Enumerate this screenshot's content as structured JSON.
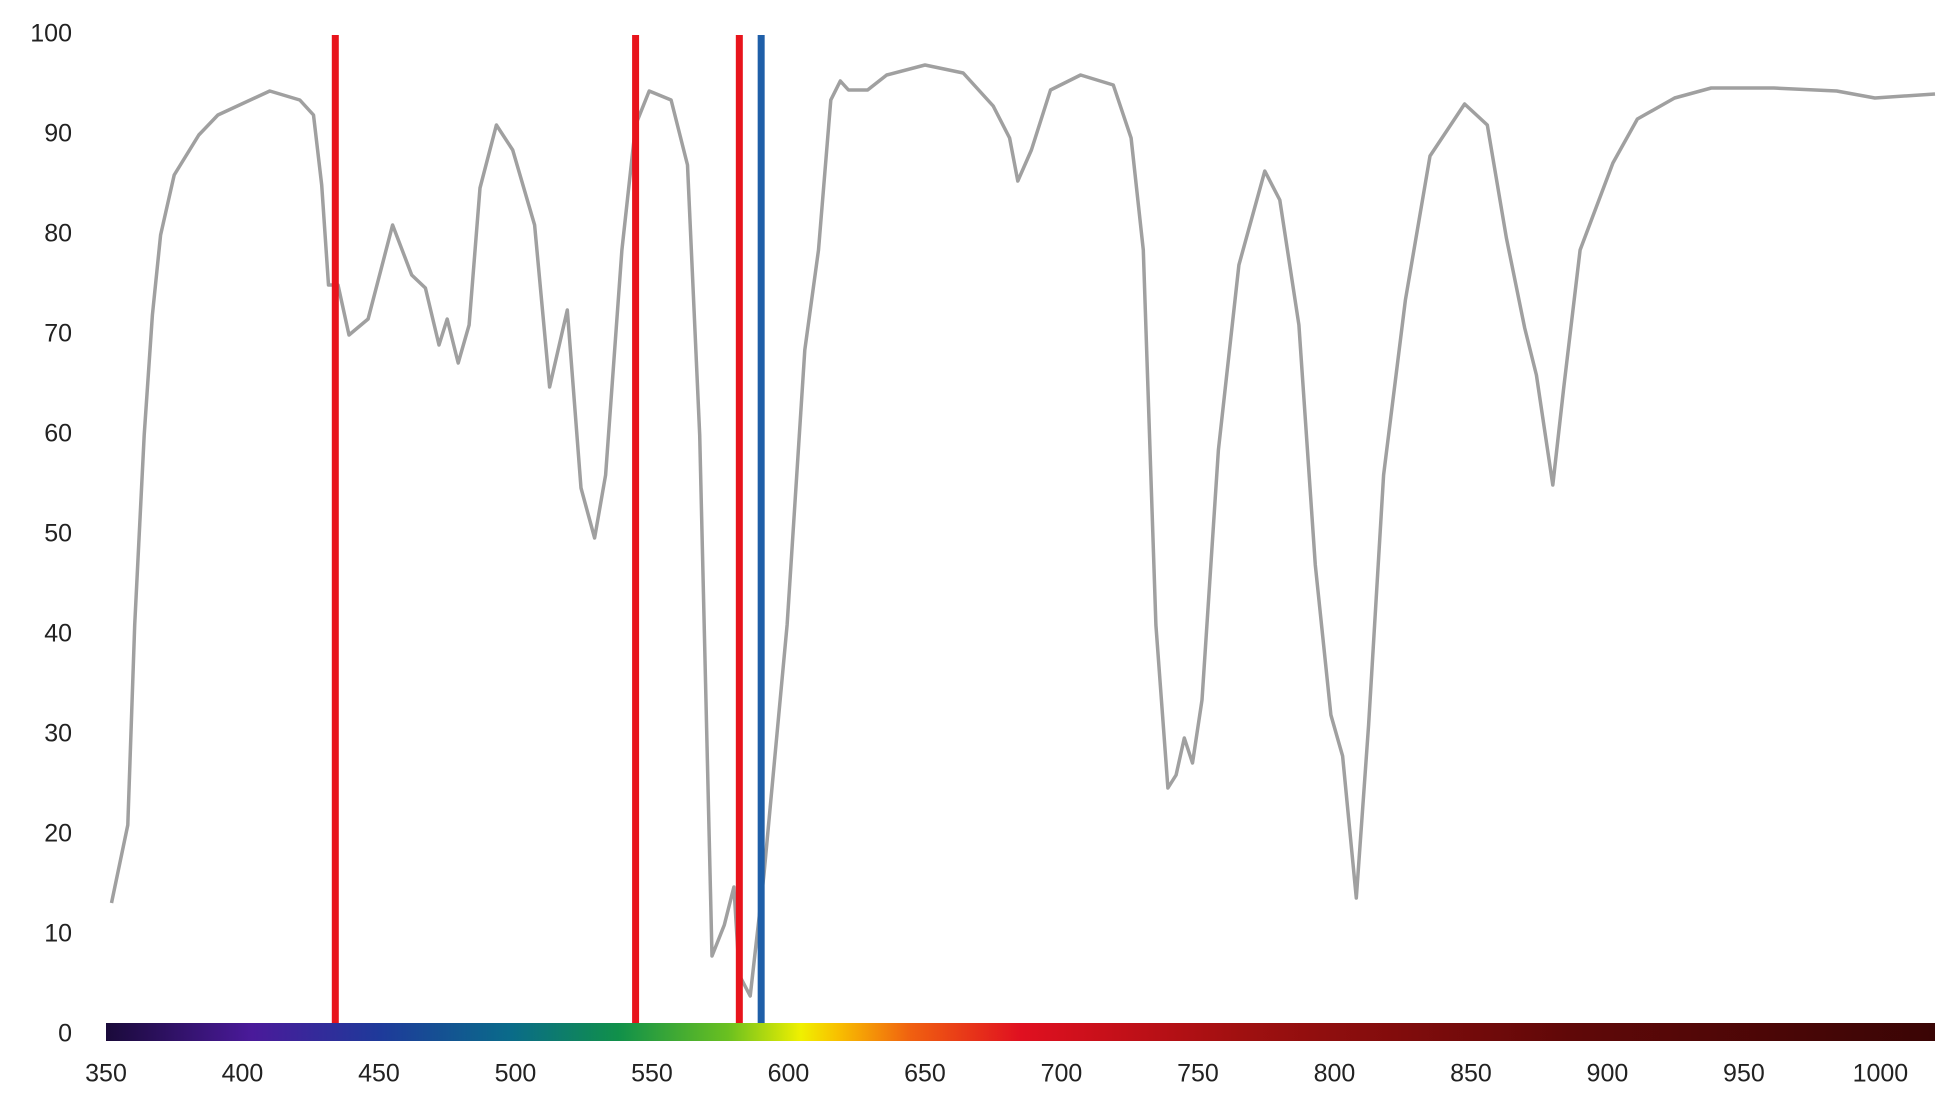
{
  "chart_data": {
    "type": "line",
    "xlim": [
      350,
      1020
    ],
    "ylim": [
      0,
      100
    ],
    "xticks": [
      350,
      400,
      450,
      500,
      550,
      600,
      650,
      700,
      750,
      800,
      850,
      900,
      950,
      1000
    ],
    "yticks": [
      0,
      10,
      20,
      30,
      40,
      50,
      60,
      70,
      80,
      90,
      100
    ],
    "xgrid": [
      350,
      360,
      370,
      380,
      390,
      400,
      410,
      420,
      430,
      440,
      450,
      460,
      470,
      480,
      490,
      500,
      510,
      520,
      530,
      540,
      550,
      560,
      570,
      580,
      590,
      600,
      610,
      620,
      630,
      640,
      650,
      660,
      670,
      680,
      690,
      700,
      710,
      720,
      730,
      740,
      750,
      760,
      770,
      780,
      790,
      800,
      810,
      820,
      830,
      840,
      850,
      860,
      870,
      880,
      890,
      900,
      910,
      920,
      930,
      940,
      950,
      960,
      970,
      980,
      990,
      1000,
      1010,
      1020
    ],
    "grid": true,
    "vlines": [
      {
        "x": 434,
        "color": "#e8141c"
      },
      {
        "x": 544,
        "color": "#e8141c"
      },
      {
        "x": 582,
        "color": "#e8141c"
      },
      {
        "x": 590,
        "color": "#1f5fa8"
      }
    ],
    "x": [
      352,
      358,
      360.5,
      364,
      367,
      370,
      375,
      384,
      391,
      410,
      421,
      426,
      429,
      431.5,
      435,
      439,
      446,
      455,
      462,
      467,
      472,
      475,
      479,
      483,
      487,
      493,
      499,
      507,
      512.5,
      519,
      524,
      529,
      533,
      539,
      544,
      549,
      557,
      563,
      567.5,
      572,
      576.5,
      580,
      582,
      586,
      591,
      599.5,
      606,
      611,
      615.5,
      619,
      622,
      629,
      636,
      650,
      664,
      675,
      681,
      684,
      689,
      696,
      707,
      719,
      725.5,
      730,
      734.6,
      739,
      742,
      745,
      748,
      751.5,
      757.5,
      765,
      774.5,
      780,
      787,
      793,
      798.7,
      803,
      808,
      812.5,
      818,
      826,
      835,
      847.7,
      856,
      863,
      869.7,
      874,
      880,
      884,
      890,
      902,
      911,
      924.6,
      938,
      961,
      984,
      998,
      1020
    ],
    "series": [
      {
        "color": "#a0a0a0",
        "values": [
          13.2,
          21,
          41,
          60,
          72,
          80,
          86,
          90,
          92,
          94.4,
          93.5,
          92,
          85,
          75,
          75,
          70,
          71.6,
          81,
          76,
          74.7,
          69,
          71.6,
          67.2,
          71,
          84.7,
          91,
          88.5,
          81,
          64.8,
          72.5,
          54.7,
          49.7,
          56,
          78.5,
          91,
          94.4,
          93.5,
          87,
          60,
          7.9,
          11,
          14.8,
          6,
          3.9,
          16,
          41,
          68.5,
          78.5,
          93.5,
          95.4,
          94.5,
          94.5,
          96,
          97,
          96.2,
          92.9,
          89.7,
          85.4,
          88.5,
          94.5,
          96,
          95,
          89.7,
          78.5,
          41,
          24.7,
          26,
          29.7,
          27.2,
          33.5,
          58.5,
          77,
          86.4,
          83.5,
          71,
          47,
          32,
          27.9,
          13.7,
          31,
          56,
          73.5,
          87.9,
          93.1,
          91,
          79.7,
          70.7,
          66,
          55,
          64.7,
          78.5,
          87.2,
          91.6,
          93.7,
          94.7,
          94.7,
          94.4,
          93.7,
          94.1
        ]
      }
    ]
  }
}
